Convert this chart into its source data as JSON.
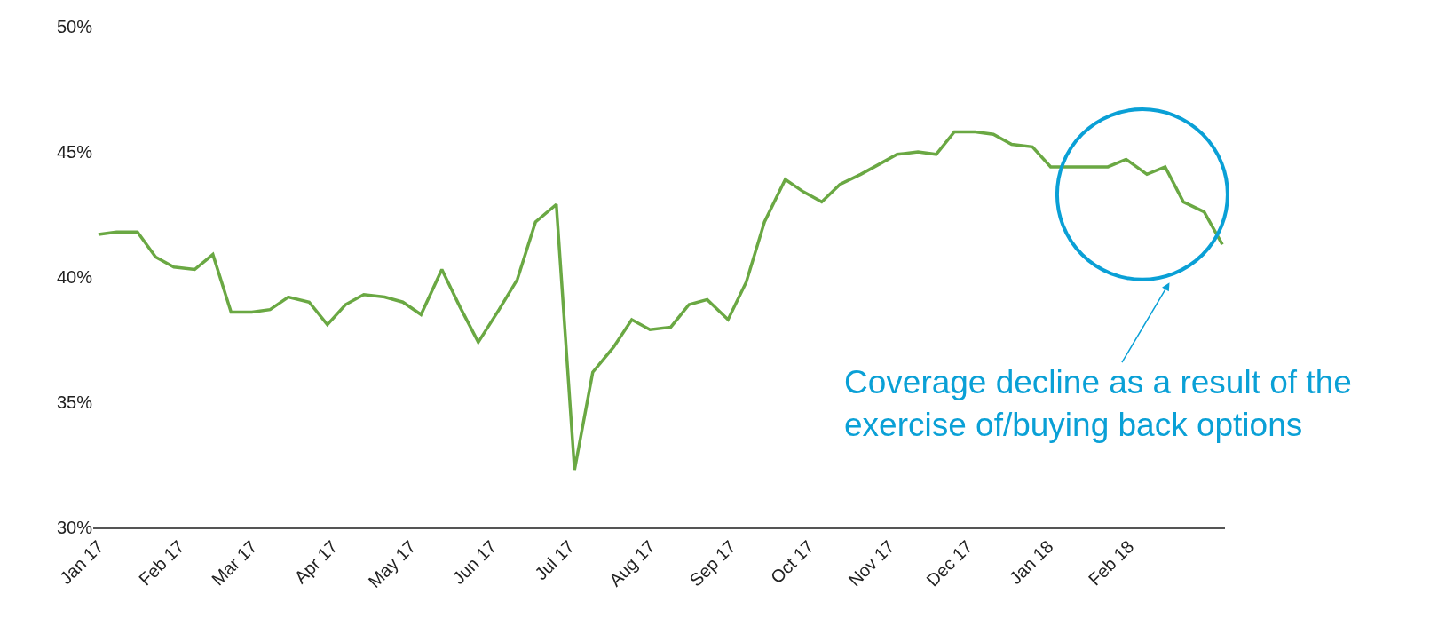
{
  "chart_data": {
    "type": "line",
    "x": [
      "2017-01-01",
      "2017-01-08",
      "2017-01-16",
      "2017-01-23",
      "2017-01-30",
      "2017-02-07",
      "2017-02-14",
      "2017-02-21",
      "2017-03-01",
      "2017-03-08",
      "2017-03-15",
      "2017-03-23",
      "2017-03-30",
      "2017-04-06",
      "2017-04-13",
      "2017-04-21",
      "2017-04-28",
      "2017-05-05",
      "2017-05-13",
      "2017-05-20",
      "2017-05-27",
      "2017-06-04",
      "2017-06-11",
      "2017-06-18",
      "2017-06-26",
      "2017-07-03",
      "2017-07-10",
      "2017-07-18",
      "2017-07-25",
      "2017-08-01",
      "2017-08-09",
      "2017-08-16",
      "2017-08-23",
      "2017-08-31",
      "2017-09-07",
      "2017-09-14",
      "2017-09-22",
      "2017-09-29",
      "2017-10-06",
      "2017-10-13",
      "2017-10-21",
      "2017-10-28",
      "2017-11-04",
      "2017-11-12",
      "2017-11-19",
      "2017-11-26",
      "2017-12-04",
      "2017-12-11",
      "2017-12-18",
      "2017-12-26",
      "2018-01-02",
      "2018-01-09",
      "2018-01-17",
      "2018-01-24",
      "2018-01-31",
      "2018-02-08",
      "2018-02-15",
      "2018-02-22",
      "2018-03-02",
      "2018-03-09"
    ],
    "series": [
      {
        "color": "#6aa843",
        "values": [
          41.7,
          41.8,
          41.8,
          40.8,
          40.4,
          40.3,
          40.9,
          38.6,
          38.6,
          38.7,
          39.2,
          39.0,
          38.1,
          38.9,
          39.3,
          39.2,
          39.0,
          38.5,
          40.3,
          38.8,
          37.4,
          38.7,
          39.9,
          42.2,
          42.9,
          32.3,
          36.2,
          37.2,
          38.3,
          37.9,
          38.0,
          38.9,
          39.1,
          38.3,
          39.8,
          42.2,
          43.9,
          43.4,
          43.0,
          43.7,
          44.1,
          44.5,
          44.9,
          45.0,
          44.9,
          45.8,
          45.8,
          45.7,
          45.3,
          45.2,
          44.4,
          44.4,
          44.4,
          44.4,
          44.7,
          44.1,
          44.4,
          43.0,
          42.6,
          41.3
        ]
      }
    ],
    "xlim": [
      "2016-12-30",
      "2018-03-10"
    ],
    "xticks": [
      {
        "value": "2017-01-01",
        "label": "Jan 17"
      },
      {
        "value": "2017-02-01",
        "label": "Feb 17"
      },
      {
        "value": "2017-03-01",
        "label": "Mar 17"
      },
      {
        "value": "2017-04-01",
        "label": "Apr 17"
      },
      {
        "value": "2017-05-01",
        "label": "May 17"
      },
      {
        "value": "2017-06-01",
        "label": "Jun 17"
      },
      {
        "value": "2017-07-01",
        "label": "Jul 17"
      },
      {
        "value": "2017-08-01",
        "label": "Aug 17"
      },
      {
        "value": "2017-09-01",
        "label": "Sep 17"
      },
      {
        "value": "2017-10-01",
        "label": "Oct 17"
      },
      {
        "value": "2017-11-01",
        "label": "Nov 17"
      },
      {
        "value": "2017-12-01",
        "label": "Dec 17"
      },
      {
        "value": "2018-01-01",
        "label": "Jan 18"
      },
      {
        "value": "2018-02-01",
        "label": "Feb 18"
      }
    ],
    "ylim": [
      30,
      50
    ],
    "yticks": [
      {
        "value": 30,
        "label": "30%"
      },
      {
        "value": 35,
        "label": "35%"
      },
      {
        "value": 40,
        "label": "40%"
      },
      {
        "value": 45,
        "label": "45%"
      },
      {
        "value": 50,
        "label": "50%"
      }
    ],
    "legend": false,
    "marker": "none",
    "line_style": "solid",
    "annotations": [
      "Coverage decline as a result of the\nexercise of/buying back options"
    ]
  }
}
